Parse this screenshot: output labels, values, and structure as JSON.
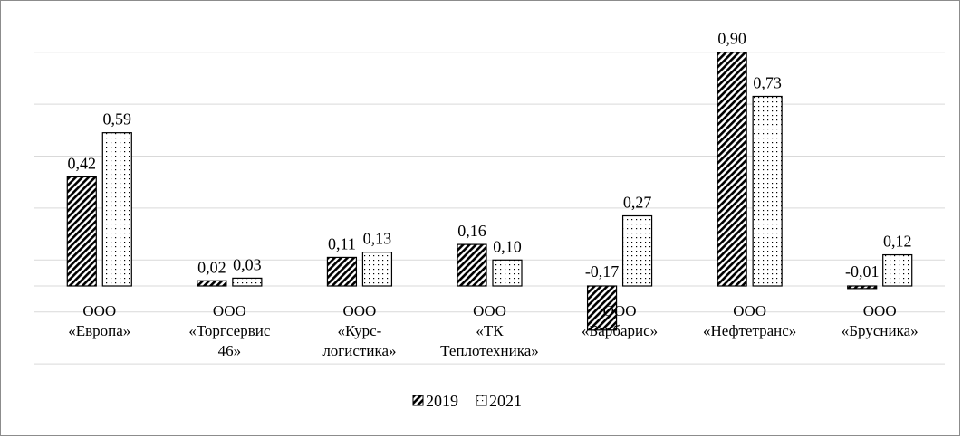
{
  "chart_data": {
    "type": "bar",
    "title": "",
    "xlabel": "",
    "ylabel": "",
    "grid": true,
    "legend_position": "bottom",
    "categories": [
      [
        "ООО",
        "«Европа»"
      ],
      [
        "ООО",
        "«Торгсервис",
        "46»"
      ],
      [
        "ООО",
        "«Курс-",
        "логистика»"
      ],
      [
        "ООО",
        "«ТК",
        "Теплотехника»"
      ],
      [
        "ООО",
        "«Барбарис»"
      ],
      [
        "ООО",
        "«Нефтетранс»"
      ],
      [
        "ООО",
        "«Брусника»"
      ]
    ],
    "series": [
      {
        "name": "2019",
        "pattern": "diagonal-hatch",
        "values": [
          0.42,
          0.02,
          0.11,
          0.16,
          -0.17,
          0.9,
          -0.01
        ],
        "labels": [
          "0,42",
          "0,02",
          "0,11",
          "0,16",
          "-0,17",
          "0,90",
          "-0,01"
        ]
      },
      {
        "name": "2021",
        "pattern": "dots",
        "values": [
          0.59,
          0.03,
          0.13,
          0.1,
          0.27,
          0.73,
          0.12
        ],
        "labels": [
          "0,59",
          "0,03",
          "0,13",
          "0,10",
          "0,27",
          "0,73",
          "0,12"
        ]
      }
    ]
  },
  "colors": {
    "bar_stroke": "#000000",
    "grid": "#d9d9d9",
    "background": "#ffffff"
  }
}
